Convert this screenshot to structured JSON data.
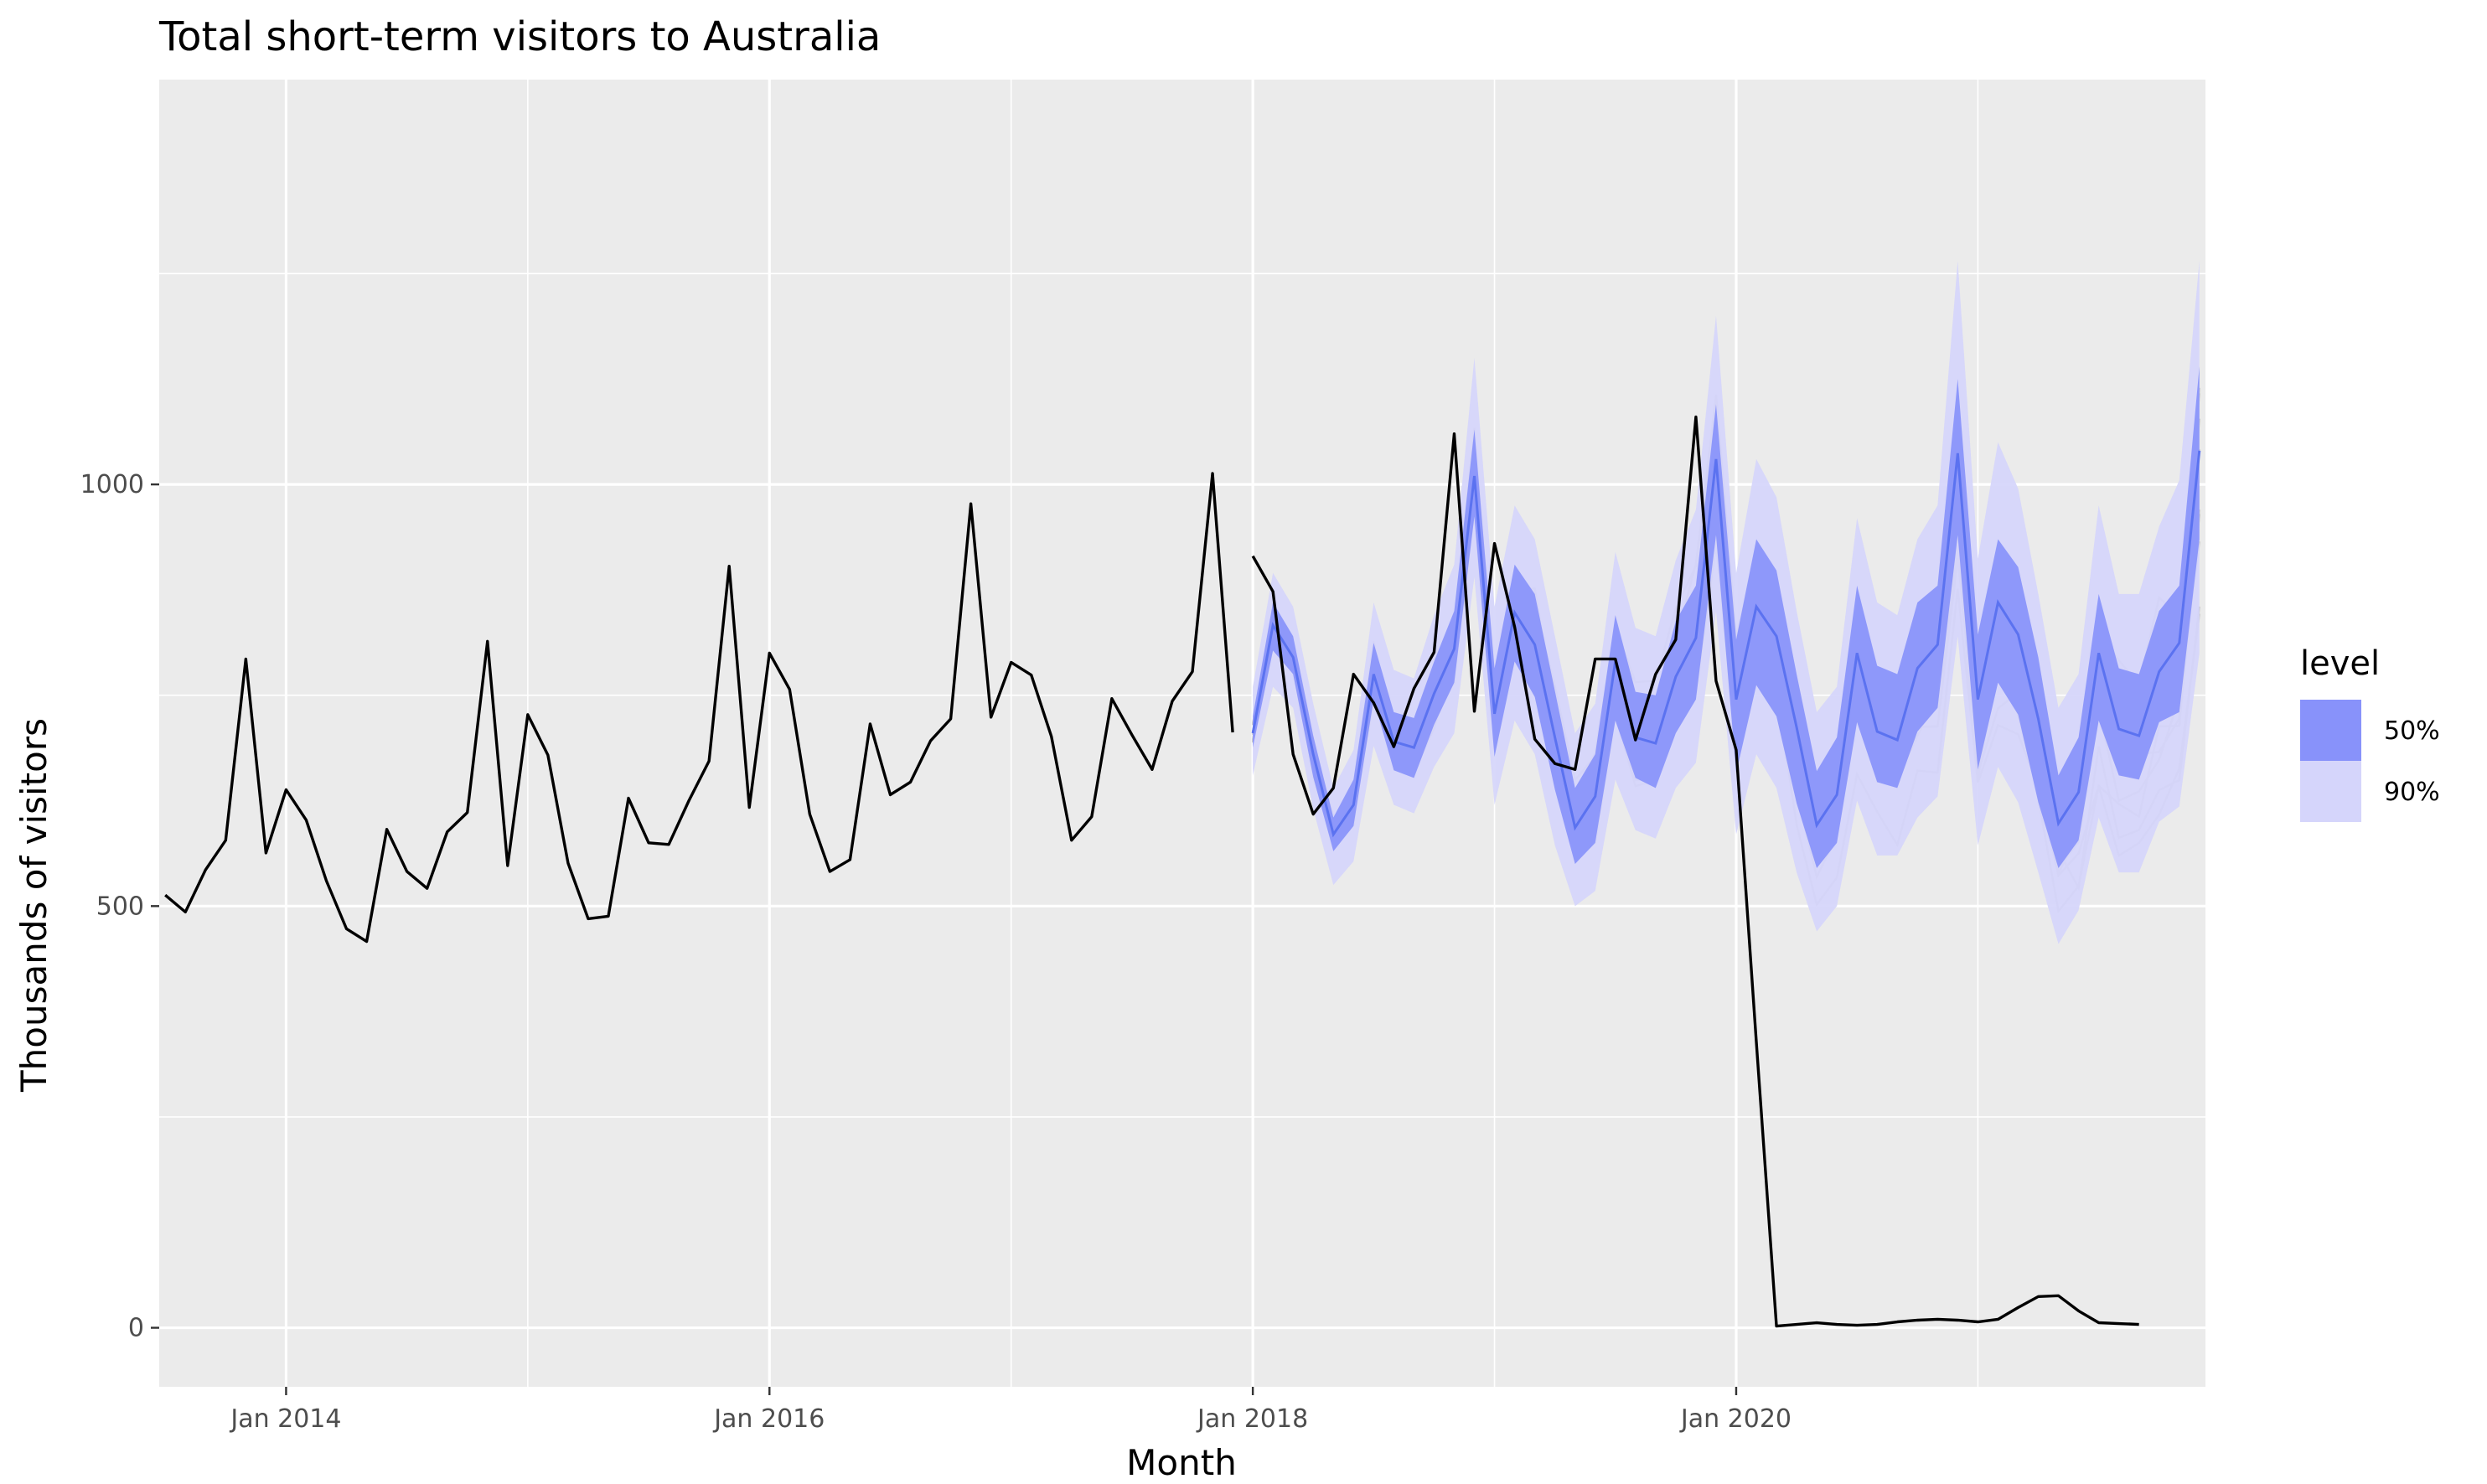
{
  "chart_data": {
    "type": "line",
    "title": "Total short-term visitors to Australia",
    "xlabel": "Month",
    "ylabel": "Thousands of visitors",
    "x_range": [
      "2013-07",
      "2021-12"
    ],
    "ylim": [
      -70,
      1480
    ],
    "y_ticks": [
      0,
      500,
      1000
    ],
    "y_tick_labels": [
      "0",
      "500",
      "1000"
    ],
    "x_ticks": [
      "2014-01",
      "2016-01",
      "2018-01",
      "2020-01"
    ],
    "x_tick_labels": [
      "Jan 2014",
      "Jan 2016",
      "Jan 2018",
      "Jan 2020"
    ],
    "grid": true,
    "legend": {
      "title": "level",
      "position": "right",
      "entries": [
        {
          "label": "50%",
          "color": "#8892fa"
        },
        {
          "label": "90%",
          "color": "#d5d5fb"
        }
      ]
    },
    "colors": {
      "panel": "#ebebeb",
      "grid_major": "#ffffff",
      "actual_line": "#000000",
      "forecast_mean": "#5b72f0",
      "band_50": "#8892fa",
      "band_90": "#d5d5fb",
      "sample_paths": "#c8c8c8"
    },
    "series": [
      {
        "kind": "actual",
        "start": "2013-07",
        "values": [
          513,
          493,
          543,
          578,
          793,
          563,
          638,
          602,
          530,
          473,
          458,
          591,
          541,
          521,
          588,
          611,
          814,
          548,
          727,
          679,
          551,
          485,
          488,
          628,
          575,
          573,
          625,
          672,
          903,
          617,
          800,
          757,
          609,
          541,
          555,
          716,
          632,
          647,
          696,
          722,
          977,
          724,
          789,
          774,
          701,
          578,
          606,
          746,
          703,
          662,
          743,
          778,
          1013,
          706,
          915,
          873,
          680,
          609,
          640,
          775,
          741,
          689,
          758,
          801,
          1060,
          731,
          930,
          831,
          698,
          669,
          662,
          793,
          793,
          697,
          775,
          816,
          1080,
          767,
          685,
          339,
          2,
          4,
          6,
          4,
          3,
          4,
          7,
          9,
          10,
          9,
          7,
          10,
          24,
          37,
          38,
          20,
          6,
          5,
          4
        ]
      },
      {
        "kind": "forecast_mean",
        "start": "2018-01",
        "values": [
          705,
          833,
          795,
          680,
          585,
          620,
          775,
          695,
          688,
          752,
          805,
          1010,
          728,
          848,
          810,
          700,
          593,
          630,
          790,
          700,
          693,
          772,
          818,
          1030,
          745,
          855,
          820,
          712,
          596,
          632,
          800,
          707,
          697,
          782,
          810,
          1037,
          745,
          860,
          822,
          722,
          598,
          635,
          800,
          710,
          702,
          778,
          812,
          1040
        ]
      },
      {
        "kind": "band_50_lower",
        "start": "2018-01",
        "values": [
          688,
          803,
          775,
          653,
          565,
          595,
          745,
          661,
          652,
          715,
          765,
          962,
          677,
          790,
          748,
          638,
          550,
          575,
          720,
          652,
          640,
          705,
          745,
          940,
          658,
          762,
          725,
          622,
          545,
          575,
          718,
          647,
          640,
          707,
          735,
          940,
          662,
          765,
          727,
          623,
          545,
          578,
          720,
          655,
          650,
          718,
          730,
          935
        ]
      },
      {
        "kind": "band_50_upper",
        "start": "2018-01",
        "values": [
          725,
          860,
          820,
          702,
          605,
          650,
          812,
          730,
          723,
          790,
          850,
          1065,
          782,
          905,
          870,
          755,
          640,
          680,
          845,
          754,
          750,
          838,
          880,
          1095,
          816,
          935,
          898,
          775,
          660,
          700,
          880,
          785,
          775,
          860,
          880,
          1125,
          822,
          935,
          902,
          795,
          655,
          700,
          870,
          782,
          775,
          850,
          880,
          1140
        ]
      },
      {
        "kind": "band_90_lower",
        "start": "2018-01",
        "values": [
          655,
          760,
          735,
          615,
          525,
          553,
          690,
          620,
          610,
          665,
          705,
          890,
          620,
          720,
          680,
          572,
          500,
          518,
          650,
          590,
          580,
          640,
          670,
          850,
          585,
          680,
          640,
          540,
          470,
          500,
          625,
          560,
          560,
          605,
          630,
          820,
          572,
          665,
          623,
          540,
          455,
          495,
          605,
          540,
          540,
          600,
          618,
          800
        ]
      },
      {
        "kind": "band_90_upper",
        "start": "2018-01",
        "values": [
          760,
          895,
          855,
          740,
          640,
          685,
          860,
          780,
          770,
          845,
          905,
          1150,
          855,
          975,
          935,
          820,
          705,
          740,
          920,
          830,
          820,
          910,
          970,
          1200,
          895,
          1030,
          985,
          850,
          730,
          760,
          960,
          860,
          845,
          935,
          975,
          1265,
          912,
          1050,
          995,
          870,
          735,
          775,
          975,
          870,
          870,
          950,
          1005,
          1265
        ]
      }
    ]
  }
}
